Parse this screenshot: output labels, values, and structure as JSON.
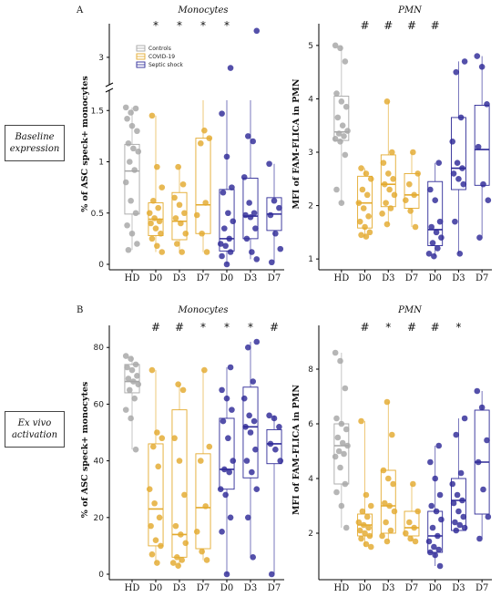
{
  "labels": {
    "panel_a": "A",
    "panel_b": "B",
    "row_a": "Baseline expression",
    "row_b": "Ex vivo activation"
  },
  "colors": {
    "controls": "#a6a6a6",
    "covid": "#e3aa2e",
    "septic": "#2e2a97"
  },
  "legend": [
    "Controls",
    "COVID-19",
    "Septic shock"
  ],
  "chart_data": [
    {
      "id": "a-monocytes",
      "type": "box-strip",
      "title": "Monocytes",
      "ylabel": "% of ASC speck+ monocytes",
      "ylim": [
        0,
        1.6
      ],
      "broken_axis": true,
      "break_tick": 3,
      "yticks": [
        0,
        0.5,
        1,
        1.5
      ],
      "categories": [
        "HD",
        "D0",
        "D3",
        "D7",
        "D0",
        "D3",
        "D7"
      ],
      "groups": [
        "controls",
        "covid",
        "covid",
        "covid",
        "septic",
        "septic",
        "septic"
      ],
      "sig": [
        "",
        "*",
        "*",
        "*",
        "*",
        "",
        ""
      ],
      "boxes": [
        [
          0.49,
          0.91,
          1.17
        ],
        [
          0.28,
          0.44,
          0.6
        ],
        [
          0.24,
          0.42,
          0.7
        ],
        [
          0.3,
          0.58,
          1.23
        ],
        [
          0.13,
          0.25,
          0.73
        ],
        [
          0.25,
          0.47,
          0.84
        ],
        [
          0.33,
          0.49,
          0.65
        ]
      ],
      "points": [
        [
          1.53,
          1.48,
          1.52,
          1.42,
          1.35,
          1.3,
          1.18,
          1.13,
          1.1,
          1.0,
          0.92,
          0.8,
          0.62,
          0.5,
          0.38,
          0.3,
          0.2,
          0.14
        ],
        [
          1.45,
          0.95,
          0.75,
          0.62,
          0.55,
          0.5,
          0.45,
          0.42,
          0.4,
          0.35,
          0.3,
          0.25,
          0.18,
          0.12
        ],
        [
          0.95,
          0.78,
          0.65,
          0.58,
          0.5,
          0.45,
          0.4,
          0.3,
          0.2,
          0.12
        ],
        [
          1.62,
          1.23,
          1.18,
          0.6,
          0.48,
          0.3,
          0.12
        ],
        [
          2.8,
          1.47,
          1.05,
          0.75,
          0.7,
          0.5,
          0.42,
          0.35,
          0.25,
          0.2,
          0.18,
          0.12,
          0.08,
          0.0
        ],
        [
          3.5,
          1.25,
          1.2,
          0.85,
          0.6,
          0.5,
          0.48,
          0.46,
          0.35,
          0.25,
          0.12,
          0.05
        ],
        [
          0.98,
          0.62,
          0.55,
          0.48,
          0.3,
          0.15,
          0.02
        ]
      ]
    },
    {
      "id": "a-pmn",
      "type": "box-strip",
      "title": "PMN",
      "ylabel": "MFI of FAM-FLICA in PMN",
      "ylim": [
        0.9,
        5.1
      ],
      "yticks": [
        1,
        2,
        3,
        4,
        5
      ],
      "categories": [
        "HD",
        "D0",
        "D3",
        "D7",
        "D0",
        "D3",
        "D7"
      ],
      "groups": [
        "controls",
        "covid",
        "covid",
        "covid",
        "septic",
        "septic",
        "septic"
      ],
      "sig": [
        "",
        "#",
        "#",
        "#",
        "#",
        "",
        ""
      ],
      "boxes": [
        [
          3.22,
          3.38,
          4.05
        ],
        [
          1.58,
          2.05,
          2.55
        ],
        [
          1.98,
          2.4,
          2.95
        ],
        [
          1.95,
          2.2,
          2.6
        ],
        [
          1.25,
          1.55,
          2.45
        ],
        [
          2.3,
          2.7,
          3.65
        ],
        [
          2.38,
          3.05,
          3.88
        ]
      ],
      "points": [
        [
          5.0,
          4.95,
          4.7,
          4.1,
          3.95,
          3.85,
          3.65,
          3.5,
          3.4,
          3.35,
          3.3,
          3.25,
          3.2,
          2.95,
          2.3,
          2.05
        ],
        [
          2.7,
          2.6,
          2.5,
          2.3,
          2.2,
          2.05,
          1.95,
          1.8,
          1.7,
          1.6,
          1.5,
          1.45,
          1.42
        ],
        [
          3.95,
          3.0,
          2.8,
          2.6,
          2.5,
          2.4,
          2.3,
          2.2,
          2.05,
          1.95,
          1.85,
          1.65
        ],
        [
          3.0,
          2.6,
          2.4,
          2.2,
          2.1,
          1.9,
          1.6
        ],
        [
          2.8,
          2.3,
          2.1,
          1.7,
          1.6,
          1.5,
          1.4,
          1.3,
          1.2,
          1.1,
          1.05
        ],
        [
          4.7,
          4.5,
          3.65,
          3.2,
          2.8,
          2.7,
          2.6,
          2.5,
          2.4,
          1.7,
          1.1
        ],
        [
          4.8,
          4.6,
          3.9,
          3.1,
          2.4,
          2.1,
          1.4
        ]
      ]
    },
    {
      "id": "b-monocytes",
      "type": "box-strip",
      "title": "Monocytes",
      "ylabel": "% of ASC speck+ monocytes",
      "ylim": [
        0,
        82
      ],
      "yticks": [
        0,
        20,
        40,
        60,
        80
      ],
      "categories": [
        "HD",
        "D0",
        "D3",
        "D7",
        "D0",
        "D3",
        "D7"
      ],
      "groups": [
        "controls",
        "covid",
        "covid",
        "covid",
        "septic",
        "septic",
        "septic"
      ],
      "sig": [
        "",
        "#",
        "#",
        "*",
        "*",
        "*",
        "#"
      ],
      "boxes": [
        [
          64,
          68,
          74
        ],
        [
          10,
          23,
          46
        ],
        [
          6,
          14,
          58
        ],
        [
          9,
          23.5,
          42.5
        ],
        [
          30,
          37,
          55
        ],
        [
          34,
          52,
          66
        ],
        [
          39,
          46,
          51
        ]
      ],
      "points": [
        [
          77,
          76,
          74,
          73,
          72,
          70,
          69,
          68,
          67,
          65,
          62,
          58,
          55,
          44
        ],
        [
          72,
          50,
          48,
          45,
          38,
          30,
          25,
          20,
          17,
          12,
          10,
          7,
          4
        ],
        [
          67,
          65,
          48,
          40,
          28,
          17,
          14,
          11,
          6,
          5,
          4,
          3
        ],
        [
          72,
          45,
          40,
          24,
          15,
          8,
          5
        ],
        [
          73,
          65,
          62,
          58,
          54,
          48,
          40,
          37,
          36,
          30,
          28,
          20,
          15,
          0
        ],
        [
          82,
          80,
          68,
          62,
          56,
          54,
          52,
          50,
          44,
          40,
          36,
          30,
          20,
          6
        ],
        [
          56,
          55,
          52,
          46,
          44,
          40,
          0
        ]
      ]
    },
    {
      "id": "b-pmn",
      "type": "box-strip",
      "title": "PMN",
      "ylabel": "MFI of FAM-FLICA in PMN",
      "ylim": [
        0.5,
        9
      ],
      "yticks": [
        2,
        4,
        6,
        8
      ],
      "categories": [
        "HD",
        "D0",
        "D3",
        "D7",
        "D0",
        "D3",
        "D7"
      ],
      "groups": [
        "controls",
        "covid",
        "covid",
        "covid",
        "septic",
        "septic",
        "septic"
      ],
      "sig": [
        "",
        "#",
        "*",
        "#",
        "#",
        "*",
        ""
      ],
      "boxes": [
        [
          3.8,
          5.2,
          6.0
        ],
        [
          1.9,
          2.3,
          2.7
        ],
        [
          2.0,
          3.0,
          4.3
        ],
        [
          1.9,
          2.2,
          2.8
        ],
        [
          1.3,
          1.9,
          2.8
        ],
        [
          2.1,
          3.2,
          4.0
        ],
        [
          2.7,
          4.6,
          6.5
        ]
      ],
      "points": [
        [
          8.6,
          8.3,
          7.3,
          6.2,
          6.0,
          5.8,
          5.5,
          5.3,
          5.2,
          5.0,
          4.9,
          4.8,
          4.4,
          3.8,
          3.5,
          3.0,
          2.2
        ],
        [
          6.1,
          3.4,
          3.0,
          2.8,
          2.6,
          2.4,
          2.3,
          2.2,
          2.1,
          2.0,
          1.9,
          1.8,
          1.6,
          1.5
        ],
        [
          6.8,
          5.6,
          4.3,
          4.0,
          3.8,
          3.1,
          3.0,
          2.8,
          2.4,
          2.1,
          1.9,
          1.7
        ],
        [
          3.8,
          2.8,
          2.4,
          2.2,
          2.0,
          1.8,
          1.7
        ],
        [
          5.2,
          4.6,
          4.0,
          3.4,
          3.0,
          2.8,
          2.5,
          2.2,
          1.9,
          1.7,
          1.5,
          1.4,
          1.3,
          1.2,
          0.8
        ],
        [
          6.2,
          5.6,
          4.2,
          3.8,
          3.4,
          3.2,
          3.1,
          2.8,
          2.6,
          2.4,
          2.3,
          2.2,
          2.1
        ],
        [
          7.2,
          6.6,
          5.4,
          4.6,
          3.6,
          2.6,
          1.8
        ]
      ]
    }
  ]
}
